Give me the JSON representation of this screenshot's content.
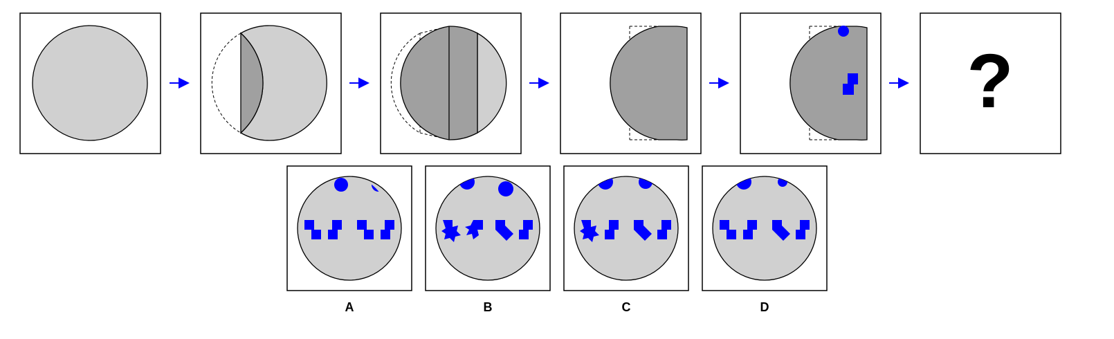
{
  "puzzle": {
    "steps": [
      {
        "id": "step-1",
        "stage": "full-circle"
      },
      {
        "id": "step-2",
        "stage": "first-fold"
      },
      {
        "id": "step-3",
        "stage": "second-fold"
      },
      {
        "id": "step-4",
        "stage": "third-fold"
      },
      {
        "id": "step-5",
        "stage": "punched"
      },
      {
        "id": "step-6",
        "stage": "question"
      }
    ],
    "question_mark": "?",
    "arrow_icon": "right-arrow-icon",
    "options": [
      {
        "label": "A"
      },
      {
        "label": "B"
      },
      {
        "label": "C"
      },
      {
        "label": "D"
      }
    ]
  },
  "colors": {
    "paper": "#d0d0d0",
    "folded": "#a0a0a0",
    "hole": "#0000ff",
    "frame": "#000000"
  }
}
